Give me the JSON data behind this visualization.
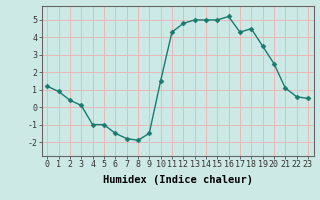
{
  "x": [
    0,
    1,
    2,
    3,
    4,
    5,
    6,
    7,
    8,
    9,
    10,
    11,
    12,
    13,
    14,
    15,
    16,
    17,
    18,
    19,
    20,
    21,
    22,
    23
  ],
  "y": [
    1.2,
    0.9,
    0.4,
    0.1,
    -1.0,
    -1.0,
    -1.5,
    -1.8,
    -1.9,
    -1.5,
    1.5,
    4.3,
    4.8,
    5.0,
    5.0,
    5.0,
    5.2,
    4.3,
    4.5,
    3.5,
    2.5,
    1.1,
    0.6,
    0.5
  ],
  "line_color": "#1a7a6e",
  "marker": "D",
  "marker_size": 2.5,
  "linewidth": 1.0,
  "xlabel": "Humidex (Indice chaleur)",
  "xlim": [
    -0.5,
    23.5
  ],
  "ylim": [
    -2.8,
    5.8
  ],
  "yticks": [
    -2,
    -1,
    0,
    1,
    2,
    3,
    4,
    5
  ],
  "xticks": [
    0,
    1,
    2,
    3,
    4,
    5,
    6,
    7,
    8,
    9,
    10,
    11,
    12,
    13,
    14,
    15,
    16,
    17,
    18,
    19,
    20,
    21,
    22,
    23
  ],
  "bg_color": "#cce9e6",
  "grid_color": "#e8b8b8",
  "tick_fontsize": 6,
  "xlabel_fontsize": 7.5,
  "spine_color": "#666666"
}
